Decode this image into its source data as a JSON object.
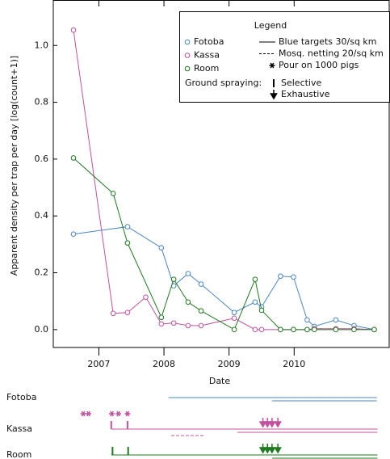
{
  "chart_data": {
    "type": "line",
    "ylabel": "Apparent density per trap per day [log(count+1)]",
    "xlabel": "Date",
    "xlim": [
      2006.3,
      2011.46
    ],
    "xticks": [
      2007,
      2008,
      2009,
      2010
    ],
    "ylim": [
      -0.063,
      1.16
    ],
    "yticks": [
      {
        "value": 0,
        "label": "0.0"
      },
      {
        "value": 0.2,
        "label": "0.2"
      },
      {
        "value": 0.4,
        "label": "0.4"
      },
      {
        "value": 0.6,
        "label": "0.6"
      },
      {
        "value": 0.8,
        "label": "0.8"
      },
      {
        "value": 1.0,
        "label": "1.0"
      }
    ],
    "series": [
      {
        "name": "Fotoba",
        "color": "#4a86c8",
        "x": [
          2006.61,
          2007.44,
          2007.96,
          2008.15,
          2008.37,
          2008.57,
          2009.08,
          2009.4,
          2009.5,
          2009.79,
          2009.99,
          2010.2,
          2010.31,
          2010.64,
          2010.92,
          2011.23
        ],
        "values": [
          0.336,
          0.362,
          0.288,
          0.154,
          0.197,
          0.16,
          0.06,
          0.097,
          0.08,
          0.188,
          0.185,
          0.034,
          0.011,
          0.034,
          0.014,
          0
        ]
      },
      {
        "name": "Kassa",
        "color": "#c4509e",
        "x": [
          2006.61,
          2007.22,
          2007.44,
          2007.72,
          2007.96,
          2008.15,
          2008.37,
          2008.57,
          2009.08,
          2009.4,
          2009.5,
          2009.79,
          2009.99,
          2010.2,
          2010.31,
          2010.64,
          2010.92,
          2011.23
        ],
        "values": [
          1.054,
          0.057,
          0.06,
          0.114,
          0.02,
          0.023,
          0.014,
          0.014,
          0.04,
          0,
          0,
          0,
          0,
          0,
          0.003,
          0.003,
          0.003,
          0
        ]
      },
      {
        "name": "Room",
        "color": "#1e7a1e",
        "x": [
          2006.61,
          2007.22,
          2007.44,
          2007.96,
          2008.15,
          2008.37,
          2008.57,
          2009.08,
          2009.4,
          2009.5,
          2009.79,
          2009.99,
          2010.2,
          2010.31,
          2010.64,
          2010.92,
          2011.23
        ],
        "values": [
          0.604,
          0.479,
          0.305,
          0.043,
          0.177,
          0.097,
          0.066,
          0,
          0.177,
          0.068,
          0,
          0,
          0,
          0,
          0,
          0,
          0
        ]
      }
    ],
    "legend": {
      "title": "Legend",
      "interventions": [
        {
          "label": "Blue targets 30/sq km",
          "style": "solid"
        },
        {
          "label": "Mosq. netting 20/sq km",
          "style": "dashed"
        },
        {
          "label": "Pour on 1000 pigs",
          "style": "asterisk"
        }
      ],
      "spraying_label": "Ground spraying:",
      "spraying": [
        {
          "label": "Selective",
          "style": "tick"
        },
        {
          "label": "Exhaustive",
          "style": "arrow"
        }
      ]
    },
    "timeline": {
      "rows": [
        {
          "name": "Fotoba",
          "color": "#4a86c8",
          "lines": [
            {
              "start": 2008.07,
              "end": 2011.27,
              "style": "solid"
            },
            {
              "start": 2009.66,
              "end": 2011.27,
              "style": "solid"
            }
          ],
          "pour_on": [],
          "selective": [],
          "exhaustive": []
        },
        {
          "name": "Kassa",
          "color": "#c4509e",
          "lines": [
            {
              "start": 2007.19,
              "end": 2011.28,
              "style": "solid"
            },
            {
              "start": 2009.13,
              "end": 2011.28,
              "style": "solid"
            },
            {
              "start": 2008.11,
              "end": 2008.61,
              "style": "dashed"
            }
          ],
          "pour_on": [
            2006.76,
            2006.84,
            2007.2,
            2007.3,
            2007.44
          ],
          "selective": [
            2007.19,
            2007.44
          ],
          "exhaustive": [
            2009.52,
            2009.59,
            2009.66,
            2009.75
          ]
        },
        {
          "name": "Room",
          "color": "#1e7a1e",
          "lines": [
            {
              "start": 2007.19,
              "end": 2011.28,
              "style": "solid"
            },
            {
              "start": 2009.66,
              "end": 2011.28,
              "style": "solid"
            }
          ],
          "pour_on": [],
          "selective": [
            2007.21,
            2007.45
          ],
          "exhaustive": [
            2009.52,
            2009.59,
            2009.66,
            2009.75
          ]
        }
      ]
    }
  }
}
